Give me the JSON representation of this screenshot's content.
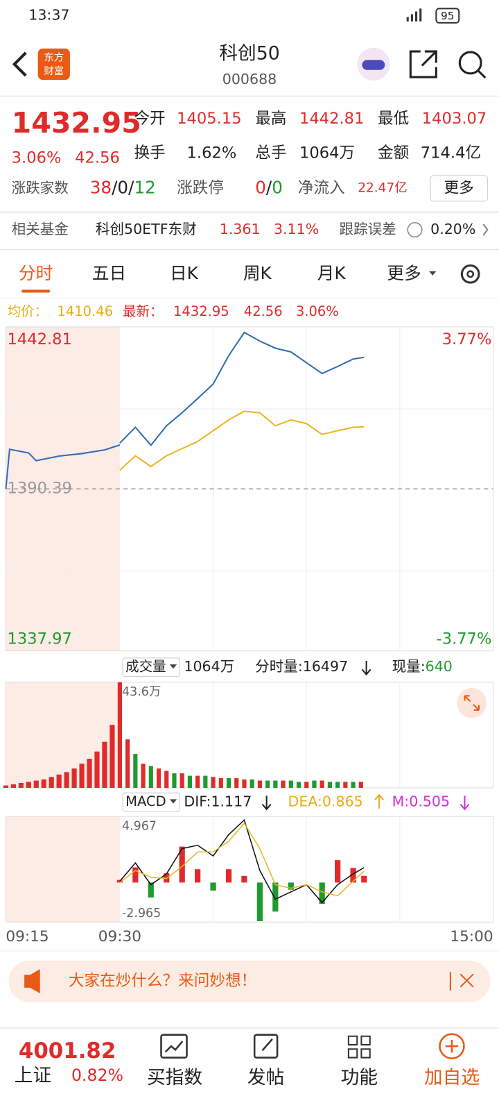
{
  "status": {
    "time": "13:37",
    "battery": "95"
  },
  "header": {
    "logo": [
      "东方",
      "财富"
    ],
    "title": "科创50",
    "code": "000688"
  },
  "quote": {
    "price": "1432.95",
    "change_pct": "3.06%",
    "change": "42.56",
    "open": {
      "label": "今开",
      "value": "1405.15"
    },
    "high": {
      "label": "最高",
      "value": "1442.81"
    },
    "low": {
      "label": "最低",
      "value": "1403.07"
    },
    "turnover": {
      "label": "换手",
      "value": "1.62%"
    },
    "volume": {
      "label": "总手",
      "value": "1064万"
    },
    "amount": {
      "label": "金额",
      "value": "714.4亿"
    },
    "breadth": {
      "label": "涨跌家数",
      "parts": [
        "38",
        "/",
        "0",
        "/",
        "12"
      ]
    },
    "limit": {
      "label": "涨跌停",
      "parts": [
        "0",
        "/",
        "0"
      ]
    },
    "inflow": {
      "label": "净流入",
      "value": "22.47亿"
    },
    "more": "更多"
  },
  "fund": {
    "label": "相关基金",
    "name": "科创50ETF东财",
    "price": "1.361",
    "pct": "3.11%",
    "err_label": "跟踪误差",
    "err": "0.20%"
  },
  "tabs": [
    "分时",
    "五日",
    "日K",
    "周K",
    "月K",
    "更多"
  ],
  "chart_legend": {
    "avg_label": "均价：",
    "avg": "1410.46",
    "last_label": "最新：",
    "last": "1432.95",
    "change": "42.56",
    "pct": "3.06%"
  },
  "volume_header": {
    "label": "成交量",
    "total": "1064万",
    "tick_label": "分时量:",
    "tick": "16497",
    "now_label": "现量:",
    "now": "640"
  },
  "macd_header": {
    "label": "MACD",
    "dif": "DIF:1.117",
    "dea": "DEA:0.865",
    "m": "M:0.505"
  },
  "chart_data": [
    {
      "type": "line",
      "xlim": [
        -15,
        240
      ],
      "xticks": [
        {
          "value": -15,
          "label": "09:15"
        },
        {
          "value": 0,
          "label": "09:30"
        },
        {
          "value": 240,
          "label": "15:00"
        }
      ],
      "ylim": [
        1337.97,
        1442.81
      ],
      "yticks": [
        1337.97,
        1390.39,
        1442.81
      ],
      "y2lim": [
        -3.77,
        3.77
      ],
      "y2ticks": [
        {
          "value": 3.77,
          "label": "3.77%"
        },
        {
          "value": -3.77,
          "label": "-3.77%"
        }
      ],
      "auction": {
        "color": "#2f6db5",
        "x": [
          -15,
          -14.5,
          -12,
          -11,
          -8,
          -5,
          -2,
          0
        ],
        "values": [
          1390.4,
          1403.2,
          1402.0,
          1399.5,
          1401.0,
          1401.8,
          1403.0,
          1404.6
        ]
      },
      "x": [
        0,
        10,
        20,
        30,
        40,
        50,
        60,
        70,
        80,
        90,
        100,
        110,
        120,
        130,
        140,
        150,
        157
      ],
      "series": [
        {
          "color": "#2f6db5",
          "values": [
            1405.2,
            1410.3,
            1404.5,
            1410.8,
            1415.0,
            1419.6,
            1424.3,
            1433.5,
            1441.0,
            1438.2,
            1435.9,
            1434.7,
            1431.2,
            1427.7,
            1430.0,
            1432.4,
            1432.95
          ]
        },
        {
          "color": "#ecb526",
          "values": [
            1396.4,
            1401.1,
            1397.6,
            1401.1,
            1403.4,
            1405.7,
            1409.2,
            1412.7,
            1415.5,
            1415.0,
            1410.8,
            1412.7,
            1411.5,
            1408.0,
            1409.2,
            1410.3,
            1410.46
          ]
        }
      ]
    },
    {
      "type": "bar",
      "xlim": [
        -15,
        240
      ],
      "ylim": [
        0,
        43.6
      ],
      "yticks": [
        {
          "value": 43.6,
          "label": "43.6万"
        }
      ],
      "x": [
        -15,
        -14,
        -13,
        -12,
        -11,
        -10,
        -9,
        -8,
        -7,
        -6,
        -5,
        -4,
        -3,
        -2,
        -1,
        0,
        5,
        10,
        15,
        20,
        25,
        30,
        35,
        40,
        45,
        50,
        55,
        60,
        65,
        70,
        75,
        80,
        85,
        90,
        95,
        100,
        105,
        110,
        115,
        120,
        125,
        130,
        135,
        140,
        145,
        150,
        155
      ],
      "values": [
        1,
        1.5,
        2,
        2.5,
        3,
        3.5,
        4.5,
        5.5,
        6.5,
        8,
        10,
        12,
        15,
        19,
        26,
        43.6,
        20,
        14,
        10,
        9,
        8,
        7,
        6,
        6,
        5,
        5,
        5,
        4.5,
        4,
        4,
        4,
        3.5,
        3.5,
        3,
        3,
        3,
        3,
        3,
        2.5,
        2.5,
        3,
        3,
        2.5,
        2.5,
        2.5,
        2.5,
        2.5
      ],
      "colors": [
        "#e02b2b",
        "#e02b2b",
        "#e02b2b",
        "#e02b2b",
        "#e02b2b",
        "#e02b2b",
        "#e02b2b",
        "#e02b2b",
        "#e02b2b",
        "#e02b2b",
        "#e02b2b",
        "#e02b2b",
        "#e02b2b",
        "#e02b2b",
        "#e02b2b",
        "#e02b2b",
        "#e02b2b",
        "#1f9a2e",
        "#e02b2b",
        "#1f9a2e",
        "#e02b2b",
        "#e02b2b",
        "#1f9a2e",
        "#e02b2b",
        "#1f9a2e",
        "#e02b2b",
        "#1f9a2e",
        "#e02b2b",
        "#e02b2b",
        "#1f9a2e",
        "#e02b2b",
        "#e02b2b",
        "#1f9a2e",
        "#e02b2b",
        "#1f9a2e",
        "#1f9a2e",
        "#e02b2b",
        "#1f9a2e",
        "#1f9a2e",
        "#e02b2b",
        "#1f9a2e",
        "#e02b2b",
        "#1f9a2e",
        "#1f9a2e",
        "#e02b2b",
        "#1f9a2e",
        "#e02b2b"
      ]
    },
    {
      "type": "macd",
      "xlim": [
        -15,
        240
      ],
      "ylim": [
        -2.965,
        4.967
      ],
      "yticks": [
        -2.965,
        4.967
      ],
      "x": [
        0,
        10,
        20,
        30,
        40,
        50,
        60,
        70,
        80,
        90,
        100,
        110,
        120,
        130,
        140,
        150,
        157
      ],
      "series": [
        {
          "color": "#111111",
          "values": [
            0.1,
            1.47,
            -0.16,
            0.65,
            2.55,
            2.8,
            2.0,
            3.6,
            4.7,
            0.9,
            -1.25,
            -0.7,
            -0.16,
            -1.5,
            -0.16,
            0.65,
            1.117
          ]
        },
        {
          "color": "#ecb526",
          "values": [
            0,
            0.9,
            0.4,
            0.3,
            1.2,
            2.3,
            2.3,
            3.1,
            4.45,
            2.55,
            -0.16,
            -0.43,
            -0.16,
            -0.7,
            -1.0,
            0.1,
            0.865
          ]
        }
      ],
      "bars": [
        0.2,
        1.14,
        -1.12,
        0.7,
        2.7,
        1.0,
        -0.6,
        1.0,
        0.5,
        -2.9,
        -2.18,
        -0.54,
        0,
        -1.6,
        1.68,
        1.1,
        0.505
      ]
    }
  ],
  "banner": "大家在炒什么？来问妙想！",
  "bottom": {
    "index_value": "4001.82",
    "index_name": "上证",
    "index_pct": "0.82%",
    "items": [
      "买指数",
      "发帖",
      "功能",
      "加自选"
    ]
  }
}
